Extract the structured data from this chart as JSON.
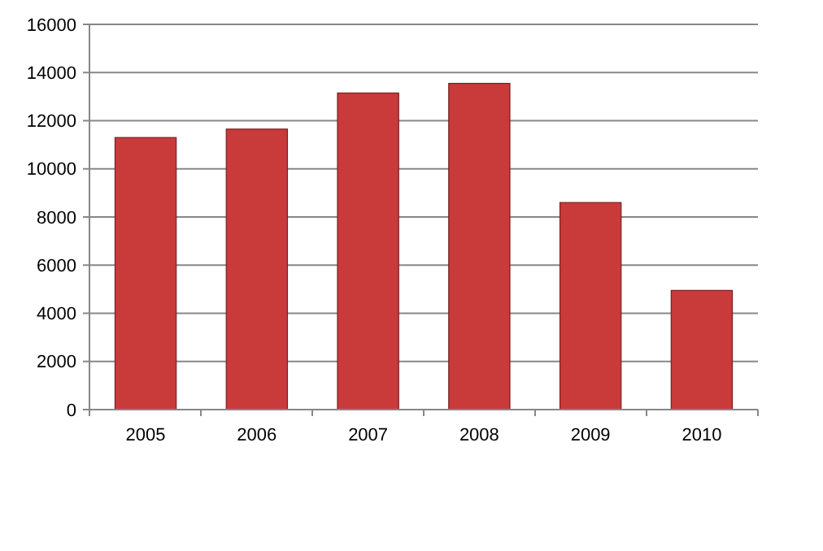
{
  "chart_data": {
    "type": "bar",
    "categories": [
      "2005",
      "2006",
      "2007",
      "2008",
      "2009",
      "2010"
    ],
    "values": [
      11300,
      11650,
      13150,
      13550,
      8600,
      4950
    ],
    "color": "#c93a3b",
    "ylim": [
      0,
      16000
    ],
    "yticks": [
      0,
      2000,
      4000,
      6000,
      8000,
      10000,
      12000,
      14000,
      16000
    ],
    "grid": "y"
  }
}
